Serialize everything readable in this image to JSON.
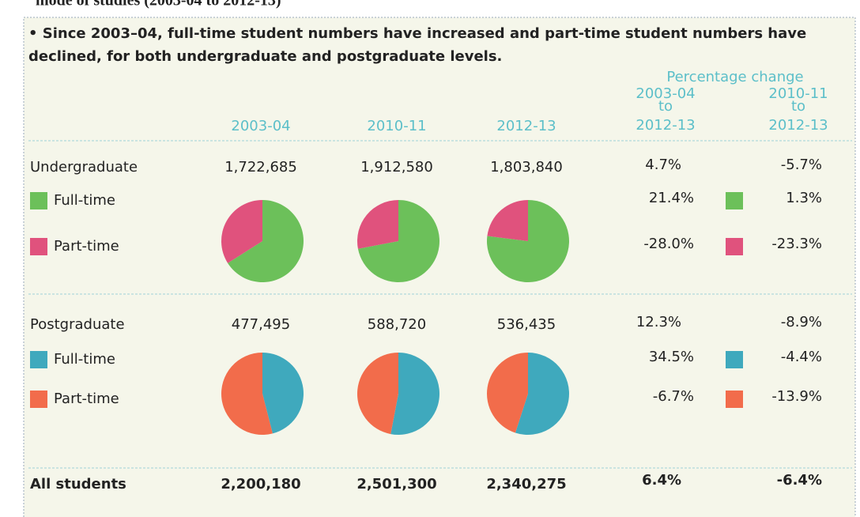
{
  "title": "mode of studies (2003-04 to 2012-13)",
  "bullet": [
    "• Since 2003–04, full-time student numbers have increased and part-time student numbers have",
    "declined, for both undergraduate and postgraduate levels."
  ],
  "years": [
    "2003-04",
    "2010-11",
    "2012-13"
  ],
  "change_heading": "Percentage change",
  "change_cols": [
    [
      "2003-04",
      "to",
      "2012-13"
    ],
    [
      "2010-11",
      "to",
      "2012-13"
    ]
  ],
  "sections": [
    {
      "label": "Undergraduate",
      "totals": [
        "1,722,685",
        "1,912,580",
        "1,803,840"
      ],
      "changes": [
        "4.7%",
        "-5.7%"
      ],
      "rows": [
        {
          "label": "Full-time",
          "changes": [
            "21.4%",
            "1.3%"
          ]
        },
        {
          "label": "Part-time",
          "changes": [
            "-28.0%",
            "-23.3%"
          ]
        }
      ]
    },
    {
      "label": "Postgraduate",
      "totals": [
        "477,495",
        "588,720",
        "536,435"
      ],
      "changes": [
        "12.3%",
        "-8.9%"
      ],
      "rows": [
        {
          "label": "Full-time",
          "changes": [
            "34.5%",
            "-4.4%"
          ]
        },
        {
          "label": "Part-time",
          "changes": [
            "-6.7%",
            "-13.9%"
          ]
        }
      ]
    }
  ],
  "all": {
    "label": "All students",
    "totals": [
      "2,200,180",
      "2,501,300",
      "2,340,275"
    ],
    "changes": [
      "6.4%",
      "-6.4%"
    ]
  },
  "chart_data": [
    {
      "type": "pie",
      "values": [
        66,
        34
      ],
      "colors": [
        "#6cc05a",
        "#e0527d"
      ]
    },
    {
      "type": "pie",
      "values": [
        72,
        28
      ],
      "colors": [
        "#6cc05a",
        "#e0527d"
      ]
    },
    {
      "type": "pie",
      "values": [
        77,
        23
      ],
      "colors": [
        "#6cc05a",
        "#e0527d"
      ]
    },
    {
      "type": "pie",
      "values": [
        46,
        54
      ],
      "colors": [
        "#3fa9bd",
        "#f26c4b"
      ]
    },
    {
      "type": "pie",
      "values": [
        53,
        47
      ],
      "colors": [
        "#3fa9bd",
        "#f26c4b"
      ]
    },
    {
      "type": "pie",
      "values": [
        55,
        45
      ],
      "colors": [
        "#3fa9bd",
        "#f26c4b"
      ]
    }
  ]
}
